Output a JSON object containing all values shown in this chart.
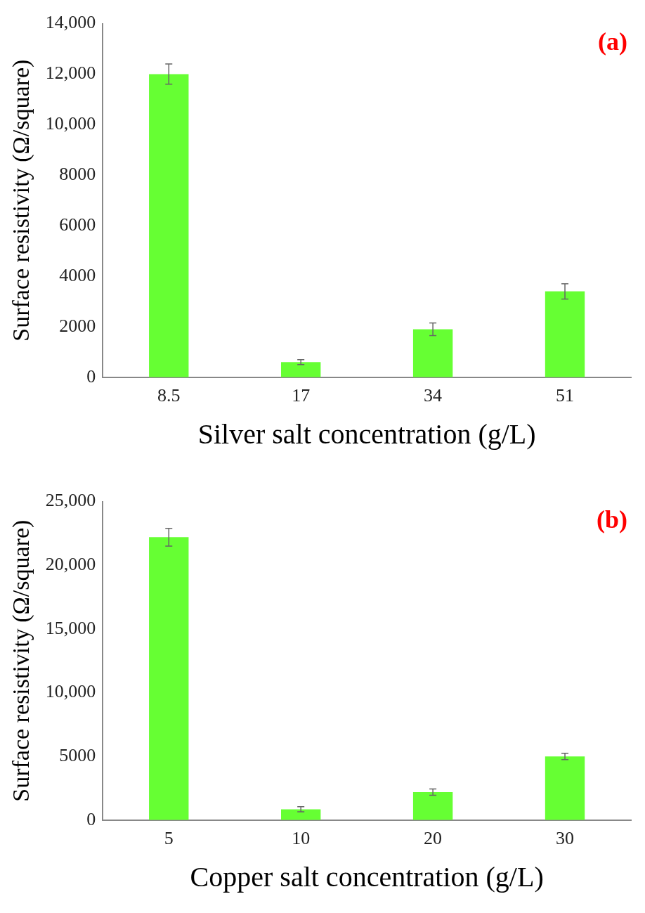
{
  "chart_data": [
    {
      "type": "bar",
      "categories": [
        "8.5",
        "17",
        "34",
        "51"
      ],
      "values": [
        12000,
        600,
        1900,
        3400
      ],
      "errors": [
        400,
        100,
        250,
        300
      ],
      "color": "#66ff33",
      "xlabel": "Silver salt concentration (g/L)",
      "ylabel": "Surface resistivity (Ω/square)",
      "ylim": [
        0,
        14000
      ],
      "yticks": [
        0,
        2000,
        4000,
        6000,
        8000,
        {
          "value": 10000,
          "label": "10,000"
        },
        {
          "value": 12000,
          "label": "12,000"
        },
        {
          "value": 14000,
          "label": "14,000"
        }
      ],
      "grid": false,
      "legend": false,
      "annotations": [
        "(a)"
      ]
    },
    {
      "type": "bar",
      "categories": [
        "5",
        "10",
        "20",
        "30"
      ],
      "values": [
        22200,
        850,
        2200,
        5000
      ],
      "errors": [
        700,
        200,
        250,
        250
      ],
      "color": "#66ff33",
      "xlabel": "Copper salt concentration (g/L)",
      "ylabel": "Surface resistivity (Ω/square)",
      "ylim": [
        0,
        25000
      ],
      "yticks": [
        0,
        5000,
        {
          "value": 10000,
          "label": "10,000"
        },
        {
          "value": 15000,
          "label": "15,000"
        },
        {
          "value": 20000,
          "label": "20,000"
        },
        {
          "value": 25000,
          "label": "25,000"
        }
      ],
      "grid": false,
      "legend": false,
      "annotations": [
        "(b)"
      ]
    }
  ]
}
